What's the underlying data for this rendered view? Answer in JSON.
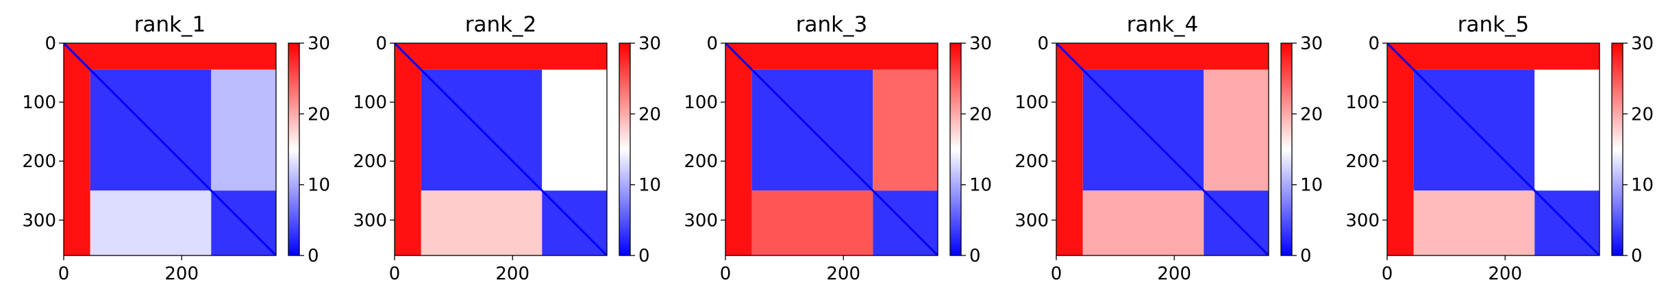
{
  "chart_data": [
    {
      "type": "heatmap",
      "title": "rank_1",
      "xlim": [
        0,
        360
      ],
      "ylim": [
        360,
        0
      ],
      "xticks": [
        0,
        200
      ],
      "yticks": [
        0,
        100,
        200,
        300
      ],
      "colorbar": {
        "range": [
          0,
          30
        ],
        "ticks": [
          0,
          10,
          20,
          30
        ],
        "colormap": [
          "#0000ff",
          "#ffffff",
          "#ff0000"
        ]
      },
      "regions": [
        {
          "rows": [
            0,
            45
          ],
          "cols": [
            0,
            360
          ],
          "value": 29
        },
        {
          "rows": [
            0,
            360
          ],
          "cols": [
            0,
            45
          ],
          "value": 29
        },
        {
          "rows": [
            45,
            250
          ],
          "cols": [
            45,
            250
          ],
          "value": 3
        },
        {
          "rows": [
            45,
            250
          ],
          "cols": [
            250,
            360
          ],
          "value": 11
        },
        {
          "rows": [
            250,
            360
          ],
          "cols": [
            45,
            250
          ],
          "value": 13
        },
        {
          "rows": [
            250,
            360
          ],
          "cols": [
            250,
            360
          ],
          "value": 3
        }
      ]
    },
    {
      "type": "heatmap",
      "title": "rank_2",
      "xlim": [
        0,
        360
      ],
      "ylim": [
        360,
        0
      ],
      "xticks": [
        0,
        200
      ],
      "yticks": [
        0,
        100,
        200,
        300
      ],
      "colorbar": {
        "range": [
          0,
          30
        ],
        "ticks": [
          0,
          10,
          20,
          30
        ],
        "colormap": [
          "#0000ff",
          "#ffffff",
          "#ff0000"
        ]
      },
      "regions": [
        {
          "rows": [
            0,
            45
          ],
          "cols": [
            0,
            360
          ],
          "value": 29
        },
        {
          "rows": [
            0,
            360
          ],
          "cols": [
            0,
            45
          ],
          "value": 29
        },
        {
          "rows": [
            45,
            250
          ],
          "cols": [
            45,
            250
          ],
          "value": 3
        },
        {
          "rows": [
            45,
            250
          ],
          "cols": [
            250,
            360
          ],
          "value": 15
        },
        {
          "rows": [
            250,
            360
          ],
          "cols": [
            45,
            250
          ],
          "value": 18
        },
        {
          "rows": [
            250,
            360
          ],
          "cols": [
            250,
            360
          ],
          "value": 3
        }
      ]
    },
    {
      "type": "heatmap",
      "title": "rank_3",
      "xlim": [
        0,
        360
      ],
      "ylim": [
        360,
        0
      ],
      "xticks": [
        0,
        200
      ],
      "yticks": [
        0,
        100,
        200,
        300
      ],
      "colorbar": {
        "range": [
          0,
          30
        ],
        "ticks": [
          0,
          10,
          20,
          30
        ],
        "colormap": [
          "#0000ff",
          "#ffffff",
          "#ff0000"
        ]
      },
      "regions": [
        {
          "rows": [
            0,
            45
          ],
          "cols": [
            0,
            360
          ],
          "value": 29
        },
        {
          "rows": [
            0,
            360
          ],
          "cols": [
            0,
            45
          ],
          "value": 29
        },
        {
          "rows": [
            45,
            250
          ],
          "cols": [
            45,
            250
          ],
          "value": 3
        },
        {
          "rows": [
            45,
            250
          ],
          "cols": [
            250,
            360
          ],
          "value": 24
        },
        {
          "rows": [
            250,
            360
          ],
          "cols": [
            45,
            250
          ],
          "value": 25
        },
        {
          "rows": [
            250,
            360
          ],
          "cols": [
            250,
            360
          ],
          "value": 3
        }
      ]
    },
    {
      "type": "heatmap",
      "title": "rank_4",
      "xlim": [
        0,
        360
      ],
      "ylim": [
        360,
        0
      ],
      "xticks": [
        0,
        200
      ],
      "yticks": [
        0,
        100,
        200,
        300
      ],
      "colorbar": {
        "range": [
          0,
          30
        ],
        "ticks": [
          0,
          10,
          20,
          30
        ],
        "colormap": [
          "#0000ff",
          "#ffffff",
          "#ff0000"
        ]
      },
      "regions": [
        {
          "rows": [
            0,
            45
          ],
          "cols": [
            0,
            360
          ],
          "value": 29
        },
        {
          "rows": [
            0,
            360
          ],
          "cols": [
            0,
            45
          ],
          "value": 29
        },
        {
          "rows": [
            45,
            250
          ],
          "cols": [
            45,
            250
          ],
          "value": 3
        },
        {
          "rows": [
            45,
            250
          ],
          "cols": [
            250,
            360
          ],
          "value": 20
        },
        {
          "rows": [
            250,
            360
          ],
          "cols": [
            45,
            250
          ],
          "value": 20
        },
        {
          "rows": [
            250,
            360
          ],
          "cols": [
            250,
            360
          ],
          "value": 3
        }
      ]
    },
    {
      "type": "heatmap",
      "title": "rank_5",
      "xlim": [
        0,
        360
      ],
      "ylim": [
        360,
        0
      ],
      "xticks": [
        0,
        200
      ],
      "yticks": [
        0,
        100,
        200,
        300
      ],
      "colorbar": {
        "range": [
          0,
          30
        ],
        "ticks": [
          0,
          10,
          20,
          30
        ],
        "colormap": [
          "#0000ff",
          "#ffffff",
          "#ff0000"
        ]
      },
      "regions": [
        {
          "rows": [
            0,
            45
          ],
          "cols": [
            0,
            360
          ],
          "value": 29
        },
        {
          "rows": [
            0,
            360
          ],
          "cols": [
            0,
            45
          ],
          "value": 29
        },
        {
          "rows": [
            45,
            250
          ],
          "cols": [
            45,
            250
          ],
          "value": 3
        },
        {
          "rows": [
            45,
            250
          ],
          "cols": [
            250,
            360
          ],
          "value": 15
        },
        {
          "rows": [
            250,
            360
          ],
          "cols": [
            45,
            250
          ],
          "value": 19
        },
        {
          "rows": [
            250,
            360
          ],
          "cols": [
            250,
            360
          ],
          "value": 3
        }
      ]
    }
  ]
}
